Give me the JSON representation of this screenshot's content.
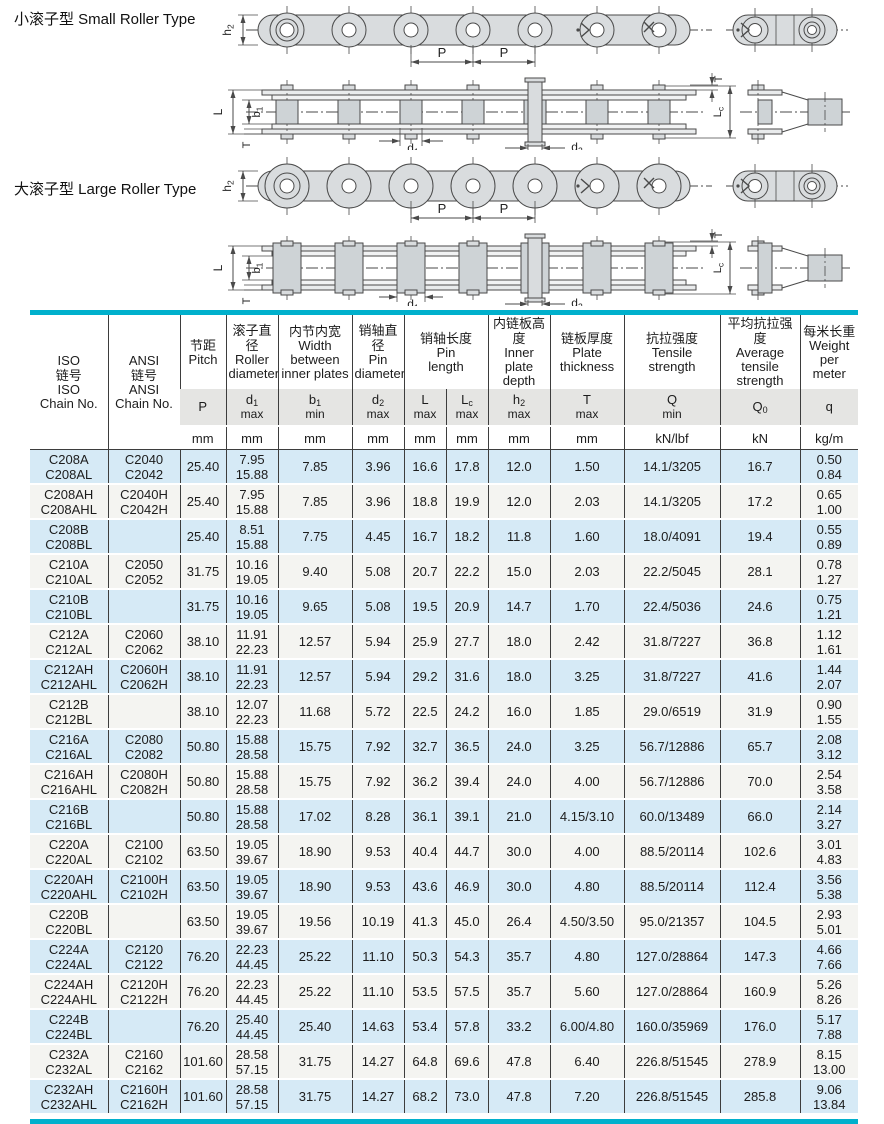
{
  "colors": {
    "accent_cyan": "#00b0cc",
    "row_blue": "#d6eaf6",
    "row_plain": "#f4f4f1",
    "header_gray": "#e5e5e3",
    "border_dark": "#3d3d3d",
    "diagram_fill": "#d9dcde",
    "diagram_roller_fill": "#ced3d6",
    "diagram_line": "#4a4a4a"
  },
  "diagrams": {
    "small": {
      "title": "小滚子型 Small Roller Type"
    },
    "large": {
      "title": "大滚子型 Large Roller Type"
    },
    "labels": {
      "h2": {
        "base": "h",
        "sub": "2"
      },
      "p": {
        "base": "P",
        "sub": ""
      },
      "l": {
        "base": "L",
        "sub": ""
      },
      "b1": {
        "base": "b",
        "sub": "1"
      },
      "t": {
        "base": "T",
        "sub": ""
      },
      "d1": {
        "base": "d",
        "sub": "1"
      },
      "d2": {
        "base": "d",
        "sub": "2"
      },
      "lc": {
        "base": "L",
        "sub": "c"
      }
    }
  },
  "table": {
    "iso": {
      "cn": "ISO\n链号",
      "en": "ISO\nChain No."
    },
    "ansi": {
      "cn": "ANSI\n链号",
      "en": "ANSI\nChain No."
    },
    "cols": {
      "pitch": {
        "cn": "节距",
        "en": "Pitch",
        "sym": "P",
        "sub": "",
        "qual": "",
        "unit": "mm"
      },
      "roller_dia": {
        "cn": "滚子直径",
        "en": "Roller\ndiameter",
        "sym": "d",
        "sub": "1",
        "qual": "max",
        "unit": "mm"
      },
      "inner_width": {
        "cn": "内节内宽",
        "en": "Width\nbetween\ninner plates",
        "sym": "b",
        "sub": "1",
        "qual": "min",
        "unit": "mm"
      },
      "pin_dia": {
        "cn": "销轴直径",
        "en": "Pin\ndiameter",
        "sym": "d",
        "sub": "2",
        "qual": "max",
        "unit": "mm"
      },
      "pin_len": {
        "cn": "销轴长度",
        "en": "Pin\nlength"
      },
      "pin_len_l": {
        "sym": "L",
        "sub": "",
        "qual": "max",
        "unit": "mm"
      },
      "pin_len_lc": {
        "sym": "L",
        "sub": "c",
        "qual": "max",
        "unit": "mm"
      },
      "plate_depth": {
        "cn": "内链板高度",
        "en": "Inner\nplate\ndepth",
        "sym": "h",
        "sub": "2",
        "qual": "max",
        "unit": "mm"
      },
      "plate_thk": {
        "cn": "链板厚度",
        "en": "Plate\nthickness",
        "sym": "T",
        "sub": "",
        "qual": "max",
        "unit": "mm"
      },
      "tensile": {
        "cn": "抗拉强度",
        "en": "Tensile\nstrength",
        "sym": "Q",
        "sub": "",
        "qual": "min",
        "unit": "kN/lbf"
      },
      "avg_tensile": {
        "cn": "平均抗拉强度",
        "en": "Average\ntensile\nstrength",
        "sym": "Q",
        "sub": "0",
        "qual": "",
        "unit": "kN"
      },
      "weight": {
        "cn": "每米长重",
        "en": "Weight\nper\nmeter",
        "sym": "q",
        "sub": "",
        "qual": "",
        "unit": "kg/m"
      }
    },
    "rows": [
      [
        "C208A\nC208AL",
        "C2040\nC2042",
        "25.40",
        "7.95\n15.88",
        "7.85",
        "3.96",
        "16.6",
        "17.8",
        "12.0",
        "1.50",
        "14.1/3205",
        "16.7",
        "0.50\n0.84"
      ],
      [
        "C208AH\nC208AHL",
        "C2040H\nC2042H",
        "25.40",
        "7.95\n15.88",
        "7.85",
        "3.96",
        "18.8",
        "19.9",
        "12.0",
        "2.03",
        "14.1/3205",
        "17.2",
        "0.65\n1.00"
      ],
      [
        "C208B\nC208BL",
        "",
        "25.40",
        "8.51\n15.88",
        "7.75",
        "4.45",
        "16.7",
        "18.2",
        "11.8",
        "1.60",
        "18.0/4091",
        "19.4",
        "0.55\n0.89"
      ],
      [
        "C210A\nC210AL",
        "C2050\nC2052",
        "31.75",
        "10.16\n19.05",
        "9.40",
        "5.08",
        "20.7",
        "22.2",
        "15.0",
        "2.03",
        "22.2/5045",
        "28.1",
        "0.78\n1.27"
      ],
      [
        "C210B\nC210BL",
        "",
        "31.75",
        "10.16\n19.05",
        "9.65",
        "5.08",
        "19.5",
        "20.9",
        "14.7",
        "1.70",
        "22.4/5036",
        "24.6",
        "0.75\n1.21"
      ],
      [
        "C212A\nC212AL",
        "C2060\nC2062",
        "38.10",
        "11.91\n22.23",
        "12.57",
        "5.94",
        "25.9",
        "27.7",
        "18.0",
        "2.42",
        "31.8/7227",
        "36.8",
        "1.12\n1.61"
      ],
      [
        "C212AH\nC212AHL",
        "C2060H\nC2062H",
        "38.10",
        "11.91\n22.23",
        "12.57",
        "5.94",
        "29.2",
        "31.6",
        "18.0",
        "3.25",
        "31.8/7227",
        "41.6",
        "1.44\n2.07"
      ],
      [
        "C212B\nC212BL",
        "",
        "38.10",
        "12.07\n22.23",
        "11.68",
        "5.72",
        "22.5",
        "24.2",
        "16.0",
        "1.85",
        "29.0/6519",
        "31.9",
        "0.90\n1.55"
      ],
      [
        "C216A\nC216AL",
        "C2080\nC2082",
        "50.80",
        "15.88\n28.58",
        "15.75",
        "7.92",
        "32.7",
        "36.5",
        "24.0",
        "3.25",
        "56.7/12886",
        "65.7",
        "2.08\n3.12"
      ],
      [
        "C216AH\nC216AHL",
        "C2080H\nC2082H",
        "50.80",
        "15.88\n28.58",
        "15.75",
        "7.92",
        "36.2",
        "39.4",
        "24.0",
        "4.00",
        "56.7/12886",
        "70.0",
        "2.54\n3.58"
      ],
      [
        "C216B\nC216BL",
        "",
        "50.80",
        "15.88\n28.58",
        "17.02",
        "8.28",
        "36.1",
        "39.1",
        "21.0",
        "4.15/3.10",
        "60.0/13489",
        "66.0",
        "2.14\n3.27"
      ],
      [
        "C220A\nC220AL",
        "C2100\nC2102",
        "63.50",
        "19.05\n39.67",
        "18.90",
        "9.53",
        "40.4",
        "44.7",
        "30.0",
        "4.00",
        "88.5/20114",
        "102.6",
        "3.01\n4.83"
      ],
      [
        "C220AH\nC220AHL",
        "C2100H\nC2102H",
        "63.50",
        "19.05\n39.67",
        "18.90",
        "9.53",
        "43.6",
        "46.9",
        "30.0",
        "4.80",
        "88.5/20114",
        "112.4",
        "3.56\n5.38"
      ],
      [
        "C220B\nC220BL",
        "",
        "63.50",
        "19.05\n39.67",
        "19.56",
        "10.19",
        "41.3",
        "45.0",
        "26.4",
        "4.50/3.50",
        "95.0/21357",
        "104.5",
        "2.93\n5.01"
      ],
      [
        "C224A\nC224AL",
        "C2120\nC2122",
        "76.20",
        "22.23\n44.45",
        "25.22",
        "11.10",
        "50.3",
        "54.3",
        "35.7",
        "4.80",
        "127.0/28864",
        "147.3",
        "4.66\n7.66"
      ],
      [
        "C224AH\nC224AHL",
        "C2120H\nC2122H",
        "76.20",
        "22.23\n44.45",
        "25.22",
        "11.10",
        "53.5",
        "57.5",
        "35.7",
        "5.60",
        "127.0/28864",
        "160.9",
        "5.26\n8.26"
      ],
      [
        "C224B\nC224BL",
        "",
        "76.20",
        "25.40\n44.45",
        "25.40",
        "14.63",
        "53.4",
        "57.8",
        "33.2",
        "6.00/4.80",
        "160.0/35969",
        "176.0",
        "5.17\n7.88"
      ],
      [
        "C232A\nC232AL",
        "C2160\nC2162",
        "101.60",
        "28.58\n57.15",
        "31.75",
        "14.27",
        "64.8",
        "69.6",
        "47.8",
        "6.40",
        "226.8/51545",
        "278.9",
        "8.15\n13.00"
      ],
      [
        "C232AH\nC232AHL",
        "C2160H\nC2162H",
        "101.60",
        "28.58\n57.15",
        "31.75",
        "14.27",
        "68.2",
        "73.0",
        "47.8",
        "7.20",
        "226.8/51545",
        "285.8",
        "9.06\n13.84"
      ]
    ]
  }
}
